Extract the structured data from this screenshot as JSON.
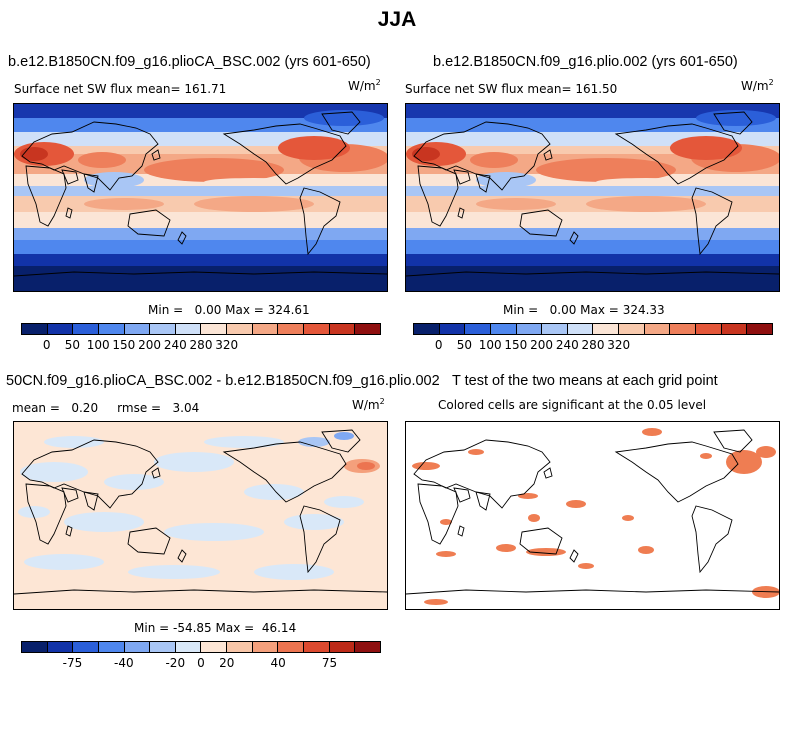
{
  "page": {
    "title": "JJA"
  },
  "colors": {
    "abs_scale": [
      "#08206b",
      "#1233a8",
      "#2b5fd9",
      "#4f87ee",
      "#7fa8f2",
      "#a9c6f5",
      "#cfe0f8",
      "#fbe5d6",
      "#f8caae",
      "#f4a886",
      "#ee7f5b",
      "#e4573a",
      "#c83520",
      "#8f1010"
    ],
    "diff_scale": [
      "#08206b",
      "#1233a8",
      "#2b5fd9",
      "#4f87ee",
      "#7fa8f2",
      "#a9c6f5",
      "#d9e8f8",
      "#fde6d5",
      "#f8c6a8",
      "#f4a07c",
      "#ec7450",
      "#dc4a2f",
      "#bd2a18",
      "#8f1010"
    ],
    "ocean_cold": "#1737ae",
    "ocean_cool": "#bcd4f5",
    "diff_bg": "#fde6d5",
    "signif": "#ef7d52"
  },
  "chart_data": [
    {
      "type": "heatmap",
      "title": "b.e12.B1850CN.f09_g16.plioCA_BSC.002 (yrs 601-650)",
      "subtitle_label": "Surface net SW flux mean=",
      "subtitle_value": "161.71",
      "units": "W/m",
      "units_exp": "2",
      "min_label": "Min =",
      "min": "0.00",
      "max_label": "Max =",
      "max": "324.61",
      "colorbar_ticks": [
        "0",
        "50",
        "100",
        "150",
        "200",
        "240",
        "280",
        "320"
      ]
    },
    {
      "type": "heatmap",
      "title": "b.e12.B1850CN.f09_g16.plio.002 (yrs 601-650)",
      "subtitle_label": "Surface net SW flux mean=",
      "subtitle_value": "161.50",
      "units": "W/m",
      "units_exp": "2",
      "min_label": "Min =",
      "min": "0.00",
      "max_label": "Max =",
      "max": "324.33",
      "colorbar_ticks": [
        "0",
        "50",
        "100",
        "150",
        "200",
        "240",
        "280",
        "320"
      ]
    },
    {
      "type": "heatmap",
      "title": "50CN.f09_g16.plioCA_BSC.002 - b.e12.B1850CN.f09_g16.plio.002",
      "mean_label": "mean =",
      "mean": "0.20",
      "rmse_label": "rmse =",
      "rmse": "3.04",
      "units": "W/m",
      "units_exp": "2",
      "min_label": "Min =",
      "min": "-54.85",
      "max_label": "Max =",
      "max": "46.14",
      "colorbar_ticks": [
        "-75",
        "-40",
        "-20",
        "0",
        "20",
        "40",
        "75"
      ]
    },
    {
      "type": "heatmap",
      "title": "T test of the two means at each grid point",
      "subtitle": "Colored cells are significant at the 0.05 level"
    }
  ]
}
